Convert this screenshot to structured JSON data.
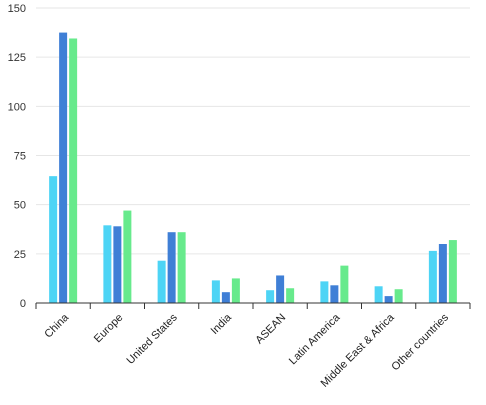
{
  "chart_data": {
    "type": "bar",
    "title": "",
    "xlabel": "",
    "ylabel": "",
    "ylim": [
      0,
      150
    ],
    "yticks": [
      0,
      25,
      50,
      75,
      100,
      125,
      150
    ],
    "grid": true,
    "legend": "none",
    "categories": [
      "China",
      "Europe",
      "United States",
      "India",
      "ASEAN",
      "Latin America",
      "Middle East & Africa",
      "Other countries"
    ],
    "series": [
      {
        "color": "#4dd4f5",
        "values": [
          64.5,
          39.5,
          21.5,
          11.5,
          6.5,
          11,
          8.5,
          26.5
        ]
      },
      {
        "color": "#3f7fd6",
        "values": [
          137.5,
          39,
          36,
          5.5,
          14,
          9,
          3.5,
          30
        ]
      },
      {
        "color": "#67ea8c",
        "values": [
          134.5,
          47,
          36,
          12.5,
          7.5,
          19,
          7,
          32
        ]
      }
    ]
  }
}
